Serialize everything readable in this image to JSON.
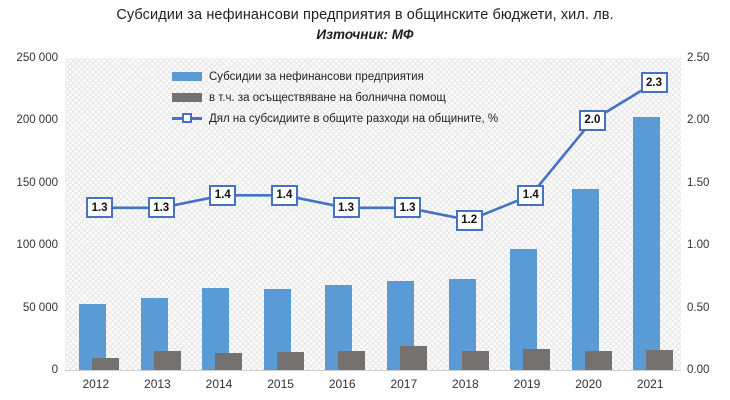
{
  "header": {
    "title": "Субсидии за нефинансови предприятия в общинските бюджети, хил. лв.",
    "subtitle": "Източник: МФ"
  },
  "colors": {
    "bar_primary": "#5B9BD5",
    "bar_secondary": "#767171",
    "line": "#4472C4",
    "axis_text": "#333333",
    "plot_hatch": "#e7e7e7"
  },
  "chart_data": {
    "type": "bar",
    "subtype": "clustered bars with overlay line on secondary axis",
    "categories": [
      "2012",
      "2013",
      "2014",
      "2015",
      "2016",
      "2017",
      "2018",
      "2019",
      "2020",
      "2021"
    ],
    "series": [
      {
        "name": "Субсидии за нефинансови предприятия",
        "type": "bar",
        "axis": "left",
        "color": "#5B9BD5",
        "values": [
          53000,
          58000,
          66000,
          65000,
          68000,
          71000,
          73000,
          97000,
          145000,
          203000
        ]
      },
      {
        "name": "в т.ч. за осъществяване на болнична помощ",
        "type": "bar",
        "axis": "left",
        "color": "#767171",
        "values": [
          10000,
          15000,
          14000,
          14500,
          15000,
          19000,
          15000,
          17000,
          15000,
          16000
        ]
      },
      {
        "name": "Дял на субсидиите в общите разходи на общините, %",
        "type": "line",
        "axis": "right",
        "color": "#4472C4",
        "values": [
          1.3,
          1.3,
          1.4,
          1.4,
          1.3,
          1.3,
          1.2,
          1.4,
          2.0,
          2.3
        ],
        "labels": [
          "1.3",
          "1.3",
          "1.4",
          "1.4",
          "1.3",
          "1.3",
          "1.2",
          "1.4",
          "2.0",
          "2.3"
        ]
      }
    ],
    "y_left": {
      "min": 0,
      "max": 250000,
      "ticks": [
        "0",
        "50 000",
        "100 000",
        "150 000",
        "200 000",
        "250 000"
      ]
    },
    "y_right": {
      "min": 0,
      "max": 2.5,
      "ticks": [
        "0.00",
        "0.50",
        "1.00",
        "1.50",
        "2.00",
        "2.50"
      ]
    },
    "grid": false,
    "legend_position": "top-left inside plot"
  }
}
